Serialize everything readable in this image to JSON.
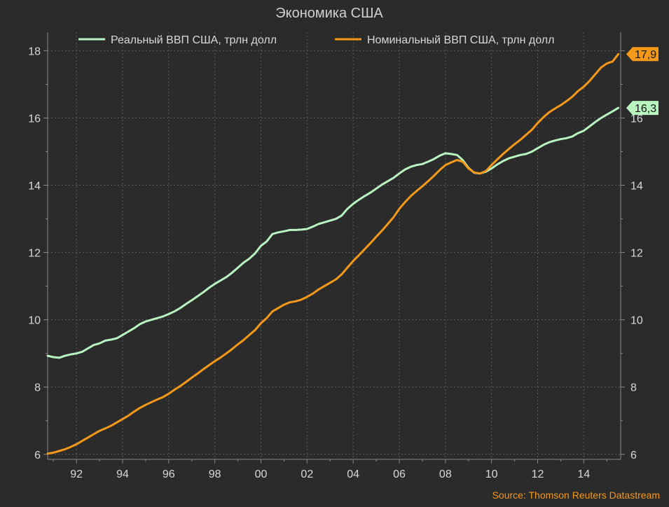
{
  "chart_data": {
    "type": "line",
    "title": "Экономика США",
    "xlabel": "",
    "ylabel": "",
    "ylim": [
      5.85,
      18.55
    ],
    "xlim": [
      1990.75,
      2015.6
    ],
    "x_tick_labels": [
      "92",
      "94",
      "96",
      "98",
      "00",
      "02",
      "04",
      "06",
      "08",
      "10",
      "12",
      "14"
    ],
    "x_tick_years": [
      1992,
      1994,
      1996,
      1998,
      2000,
      2002,
      2004,
      2006,
      2008,
      2010,
      2012,
      2014
    ],
    "y_ticks": [
      6,
      8,
      10,
      12,
      14,
      16,
      18
    ],
    "grid": true,
    "legend_position": "top",
    "source": "Source: Thomson Reuters Datastream",
    "background": "#2b2b2b",
    "series": [
      {
        "name": "Реальный ВВП США, трлн долл",
        "color": "#b8f5c0",
        "end_label": "16,3",
        "points": [
          [
            1990.75,
            8.93
          ],
          [
            1991.0,
            8.89
          ],
          [
            1991.25,
            8.87
          ],
          [
            1991.5,
            8.93
          ],
          [
            1991.75,
            8.97
          ],
          [
            1992.0,
            9.0
          ],
          [
            1992.25,
            9.05
          ],
          [
            1992.5,
            9.15
          ],
          [
            1992.75,
            9.25
          ],
          [
            1993.0,
            9.3
          ],
          [
            1993.25,
            9.38
          ],
          [
            1993.5,
            9.41
          ],
          [
            1993.75,
            9.45
          ],
          [
            1994.0,
            9.55
          ],
          [
            1994.25,
            9.65
          ],
          [
            1994.5,
            9.75
          ],
          [
            1994.75,
            9.87
          ],
          [
            1995.0,
            9.95
          ],
          [
            1995.25,
            10.0
          ],
          [
            1995.5,
            10.05
          ],
          [
            1995.75,
            10.1
          ],
          [
            1996.0,
            10.17
          ],
          [
            1996.25,
            10.25
          ],
          [
            1996.5,
            10.35
          ],
          [
            1996.75,
            10.47
          ],
          [
            1997.0,
            10.58
          ],
          [
            1997.25,
            10.7
          ],
          [
            1997.5,
            10.82
          ],
          [
            1997.75,
            10.95
          ],
          [
            1998.0,
            11.07
          ],
          [
            1998.25,
            11.17
          ],
          [
            1998.5,
            11.27
          ],
          [
            1998.75,
            11.4
          ],
          [
            1999.0,
            11.55
          ],
          [
            1999.25,
            11.7
          ],
          [
            1999.5,
            11.82
          ],
          [
            1999.75,
            11.98
          ],
          [
            2000.0,
            12.2
          ],
          [
            2000.25,
            12.33
          ],
          [
            2000.5,
            12.55
          ],
          [
            2000.75,
            12.6
          ],
          [
            2001.0,
            12.63
          ],
          [
            2001.25,
            12.67
          ],
          [
            2001.5,
            12.67
          ],
          [
            2001.75,
            12.68
          ],
          [
            2002.0,
            12.7
          ],
          [
            2002.25,
            12.77
          ],
          [
            2002.5,
            12.85
          ],
          [
            2002.75,
            12.9
          ],
          [
            2003.0,
            12.95
          ],
          [
            2003.25,
            13.0
          ],
          [
            2003.5,
            13.1
          ],
          [
            2003.75,
            13.3
          ],
          [
            2004.0,
            13.45
          ],
          [
            2004.25,
            13.57
          ],
          [
            2004.5,
            13.68
          ],
          [
            2004.75,
            13.78
          ],
          [
            2005.0,
            13.9
          ],
          [
            2005.25,
            14.02
          ],
          [
            2005.5,
            14.12
          ],
          [
            2005.75,
            14.22
          ],
          [
            2006.0,
            14.35
          ],
          [
            2006.25,
            14.47
          ],
          [
            2006.5,
            14.55
          ],
          [
            2006.75,
            14.6
          ],
          [
            2007.0,
            14.63
          ],
          [
            2007.25,
            14.7
          ],
          [
            2007.5,
            14.78
          ],
          [
            2007.75,
            14.88
          ],
          [
            2008.0,
            14.95
          ],
          [
            2008.25,
            14.93
          ],
          [
            2008.5,
            14.9
          ],
          [
            2008.75,
            14.75
          ],
          [
            2009.0,
            14.52
          ],
          [
            2009.25,
            14.37
          ],
          [
            2009.5,
            14.35
          ],
          [
            2009.75,
            14.4
          ],
          [
            2010.0,
            14.5
          ],
          [
            2010.25,
            14.62
          ],
          [
            2010.5,
            14.72
          ],
          [
            2010.75,
            14.8
          ],
          [
            2011.0,
            14.85
          ],
          [
            2011.25,
            14.9
          ],
          [
            2011.5,
            14.93
          ],
          [
            2011.75,
            15.0
          ],
          [
            2012.0,
            15.1
          ],
          [
            2012.25,
            15.2
          ],
          [
            2012.5,
            15.28
          ],
          [
            2012.75,
            15.33
          ],
          [
            2013.0,
            15.37
          ],
          [
            2013.25,
            15.4
          ],
          [
            2013.5,
            15.45
          ],
          [
            2013.75,
            15.55
          ],
          [
            2014.0,
            15.62
          ],
          [
            2014.25,
            15.75
          ],
          [
            2014.5,
            15.88
          ],
          [
            2014.75,
            16.0
          ],
          [
            2015.0,
            16.1
          ],
          [
            2015.25,
            16.2
          ],
          [
            2015.5,
            16.3
          ]
        ]
      },
      {
        "name": "Номинальный ВВП США, трлн долл",
        "color": "#f5991a",
        "end_label": "17,9",
        "points": [
          [
            1990.75,
            6.02
          ],
          [
            1991.0,
            6.05
          ],
          [
            1991.25,
            6.1
          ],
          [
            1991.5,
            6.15
          ],
          [
            1991.75,
            6.22
          ],
          [
            1992.0,
            6.3
          ],
          [
            1992.25,
            6.4
          ],
          [
            1992.5,
            6.5
          ],
          [
            1992.75,
            6.6
          ],
          [
            1993.0,
            6.7
          ],
          [
            1993.25,
            6.77
          ],
          [
            1993.5,
            6.85
          ],
          [
            1993.75,
            6.95
          ],
          [
            1994.0,
            7.05
          ],
          [
            1994.25,
            7.15
          ],
          [
            1994.5,
            7.27
          ],
          [
            1994.75,
            7.38
          ],
          [
            1995.0,
            7.47
          ],
          [
            1995.25,
            7.55
          ],
          [
            1995.5,
            7.63
          ],
          [
            1995.75,
            7.7
          ],
          [
            1996.0,
            7.8
          ],
          [
            1996.25,
            7.92
          ],
          [
            1996.5,
            8.03
          ],
          [
            1996.75,
            8.15
          ],
          [
            1997.0,
            8.28
          ],
          [
            1997.25,
            8.4
          ],
          [
            1997.5,
            8.53
          ],
          [
            1997.75,
            8.65
          ],
          [
            1998.0,
            8.77
          ],
          [
            1998.25,
            8.88
          ],
          [
            1998.5,
            9.0
          ],
          [
            1998.75,
            9.13
          ],
          [
            1999.0,
            9.27
          ],
          [
            1999.25,
            9.4
          ],
          [
            1999.5,
            9.55
          ],
          [
            1999.75,
            9.7
          ],
          [
            2000.0,
            9.9
          ],
          [
            2000.25,
            10.05
          ],
          [
            2000.5,
            10.25
          ],
          [
            2000.75,
            10.35
          ],
          [
            2001.0,
            10.45
          ],
          [
            2001.25,
            10.52
          ],
          [
            2001.5,
            10.55
          ],
          [
            2001.75,
            10.6
          ],
          [
            2002.0,
            10.68
          ],
          [
            2002.25,
            10.78
          ],
          [
            2002.5,
            10.9
          ],
          [
            2002.75,
            11.0
          ],
          [
            2003.0,
            11.1
          ],
          [
            2003.25,
            11.2
          ],
          [
            2003.5,
            11.35
          ],
          [
            2003.75,
            11.55
          ],
          [
            2004.0,
            11.75
          ],
          [
            2004.25,
            11.92
          ],
          [
            2004.5,
            12.1
          ],
          [
            2004.75,
            12.28
          ],
          [
            2005.0,
            12.47
          ],
          [
            2005.25,
            12.65
          ],
          [
            2005.5,
            12.85
          ],
          [
            2005.75,
            13.05
          ],
          [
            2006.0,
            13.3
          ],
          [
            2006.25,
            13.5
          ],
          [
            2006.5,
            13.68
          ],
          [
            2006.75,
            13.83
          ],
          [
            2007.0,
            13.97
          ],
          [
            2007.25,
            14.12
          ],
          [
            2007.5,
            14.28
          ],
          [
            2007.75,
            14.45
          ],
          [
            2008.0,
            14.6
          ],
          [
            2008.25,
            14.68
          ],
          [
            2008.5,
            14.75
          ],
          [
            2008.75,
            14.7
          ],
          [
            2009.0,
            14.5
          ],
          [
            2009.25,
            14.38
          ],
          [
            2009.5,
            14.35
          ],
          [
            2009.75,
            14.42
          ],
          [
            2010.0,
            14.6
          ],
          [
            2010.25,
            14.77
          ],
          [
            2010.5,
            14.93
          ],
          [
            2010.75,
            15.08
          ],
          [
            2011.0,
            15.22
          ],
          [
            2011.25,
            15.35
          ],
          [
            2011.5,
            15.5
          ],
          [
            2011.75,
            15.65
          ],
          [
            2012.0,
            15.85
          ],
          [
            2012.25,
            16.02
          ],
          [
            2012.5,
            16.17
          ],
          [
            2012.75,
            16.28
          ],
          [
            2013.0,
            16.38
          ],
          [
            2013.25,
            16.5
          ],
          [
            2013.5,
            16.63
          ],
          [
            2013.75,
            16.8
          ],
          [
            2014.0,
            16.93
          ],
          [
            2014.25,
            17.1
          ],
          [
            2014.5,
            17.3
          ],
          [
            2014.75,
            17.5
          ],
          [
            2015.0,
            17.62
          ],
          [
            2015.25,
            17.68
          ],
          [
            2015.5,
            17.9
          ]
        ]
      }
    ]
  }
}
